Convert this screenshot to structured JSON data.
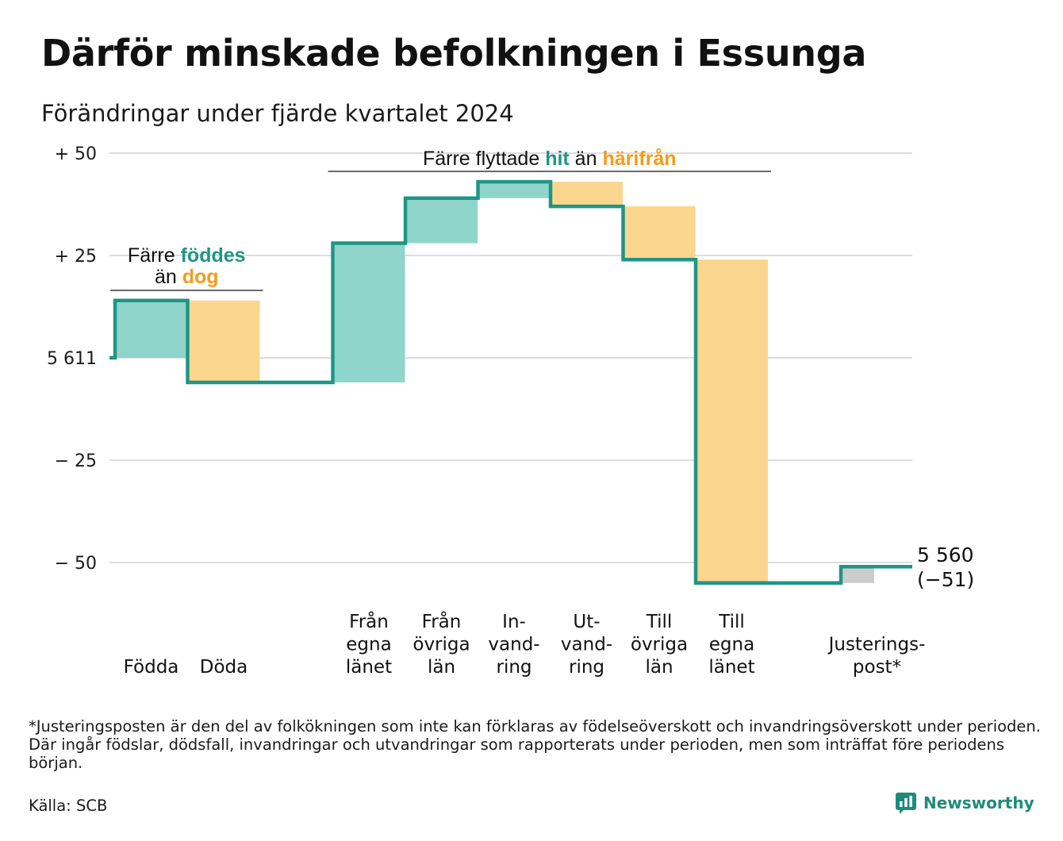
{
  "title": "Därför minskade befolkningen i Essunga",
  "subtitle": "Förändringar under fjärde kvartalet 2024",
  "footnote": "*Justeringsposten är den del av folkökningen som inte kan förklaras av födelseöverskott och invandringsöverskott under perioden. Där ingår födslar, dödsfall, invandringar och utvandringar som rapporterats under perioden, men som inträffat före periodens början.",
  "source": "Källa: SCB",
  "brand": {
    "name": "Newsworthy",
    "icon": "newsworthy-logo-icon"
  },
  "colors": {
    "increase": "#8fd5cc",
    "decrease": "#fad68e",
    "adjustment": "#cccccc",
    "line": "#1f9585",
    "hit_text": "#1f9585",
    "harifran_text": "#f39c1c",
    "grid": "#dddddd"
  },
  "chart_data": {
    "type": "waterfall",
    "start_value": 5611,
    "end_label": "5 560",
    "end_change_label": "(−51)",
    "ylim": [
      -56,
      50
    ],
    "y_ticks": [
      {
        "value": 50,
        "label": "+ 50"
      },
      {
        "value": 25,
        "label": "+ 25"
      },
      {
        "value": 0,
        "label": "5 611"
      },
      {
        "value": -25,
        "label": "− 25"
      },
      {
        "value": -50,
        "label": "− 50"
      }
    ],
    "steps": [
      {
        "label": [
          "Födda"
        ],
        "value": 14,
        "kind": "increase"
      },
      {
        "label": [
          "Döda"
        ],
        "value": -20,
        "kind": "decrease"
      },
      {
        "label": [],
        "value": 0,
        "kind": "gap"
      },
      {
        "label": [
          "Från",
          "egna",
          "länet"
        ],
        "value": 34,
        "kind": "increase"
      },
      {
        "label": [
          "Från",
          "övriga",
          "län"
        ],
        "value": 11,
        "kind": "increase"
      },
      {
        "label": [
          "In-",
          "vand-",
          "ring"
        ],
        "value": 4,
        "kind": "increase"
      },
      {
        "label": [
          "Ut-",
          "vand-",
          "ring"
        ],
        "value": -6,
        "kind": "decrease"
      },
      {
        "label": [
          "Till",
          "övriga",
          "län"
        ],
        "value": -13,
        "kind": "decrease"
      },
      {
        "label": [
          "Till",
          "egna",
          "länet"
        ],
        "value": -79,
        "kind": "decrease"
      },
      {
        "label": [],
        "value": 0,
        "kind": "gap"
      },
      {
        "label": [
          "Justerings-",
          "post*"
        ],
        "value": 4,
        "kind": "adjustment"
      }
    ],
    "annotations": [
      {
        "lines": [
          [
            {
              "text": "Färre ",
              "color": "plain"
            },
            {
              "text": "föddes",
              "color": "hit"
            }
          ],
          [
            {
              "text": "än ",
              "color": "plain"
            },
            {
              "text": "dog",
              "color": "harifran"
            }
          ]
        ],
        "from_step": 0,
        "to_step": 1
      },
      {
        "lines": [
          [
            {
              "text": "Färre flyttade ",
              "color": "plain"
            },
            {
              "text": "hit",
              "color": "hit"
            },
            {
              "text": " än ",
              "color": "plain"
            },
            {
              "text": "härifrån",
              "color": "harifran"
            }
          ]
        ],
        "from_step": 3,
        "to_step": 8
      }
    ]
  }
}
